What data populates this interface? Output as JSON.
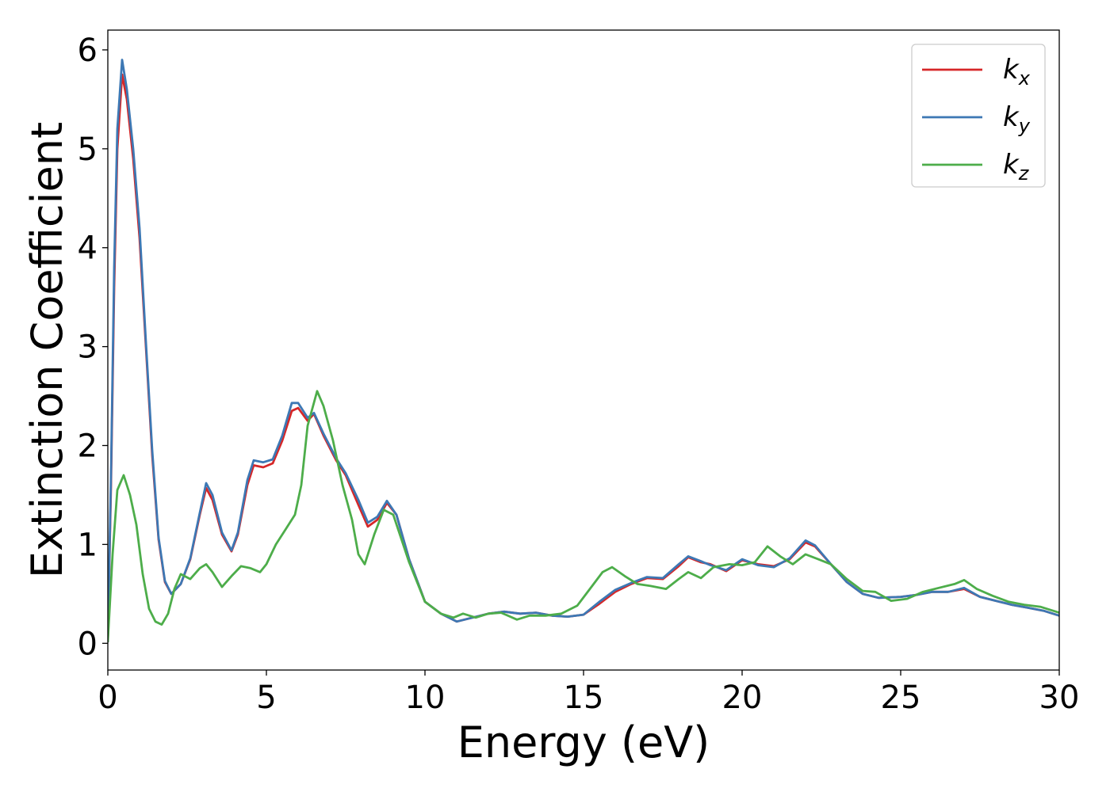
{
  "chart_data": {
    "type": "line",
    "title": "",
    "xlabel": "Energy (eV)",
    "ylabel": "Extinction Coefficient",
    "xlim": [
      0,
      30
    ],
    "ylim": [
      -0.27,
      6.2
    ],
    "xticks": [
      0,
      5,
      10,
      15,
      20,
      25,
      30
    ],
    "yticks": [
      0,
      1,
      2,
      3,
      4,
      5,
      6
    ],
    "grid": false,
    "legend_position": "top-right",
    "series": [
      {
        "name": "k_x",
        "label_main": "k",
        "label_sub": "x",
        "color": "#d62728",
        "points": [
          [
            0,
            0.02
          ],
          [
            0.1,
            1.6
          ],
          [
            0.2,
            3.6
          ],
          [
            0.3,
            5.0
          ],
          [
            0.45,
            5.75
          ],
          [
            0.6,
            5.5
          ],
          [
            0.8,
            4.9
          ],
          [
            1.0,
            4.1
          ],
          [
            1.2,
            3.0
          ],
          [
            1.4,
            1.9
          ],
          [
            1.6,
            1.05
          ],
          [
            1.8,
            0.62
          ],
          [
            2.0,
            0.5
          ],
          [
            2.3,
            0.6
          ],
          [
            2.6,
            0.85
          ],
          [
            2.9,
            1.3
          ],
          [
            3.1,
            1.57
          ],
          [
            3.3,
            1.45
          ],
          [
            3.6,
            1.1
          ],
          [
            3.9,
            0.93
          ],
          [
            4.1,
            1.1
          ],
          [
            4.4,
            1.6
          ],
          [
            4.6,
            1.8
          ],
          [
            4.9,
            1.78
          ],
          [
            5.2,
            1.82
          ],
          [
            5.5,
            2.05
          ],
          [
            5.8,
            2.35
          ],
          [
            6.0,
            2.38
          ],
          [
            6.3,
            2.25
          ],
          [
            6.5,
            2.32
          ],
          [
            6.8,
            2.1
          ],
          [
            7.2,
            1.85
          ],
          [
            7.5,
            1.7
          ],
          [
            7.9,
            1.4
          ],
          [
            8.2,
            1.18
          ],
          [
            8.5,
            1.25
          ],
          [
            8.8,
            1.42
          ],
          [
            9.1,
            1.3
          ],
          [
            9.5,
            0.85
          ],
          [
            10.0,
            0.42
          ],
          [
            10.5,
            0.3
          ],
          [
            11.0,
            0.22
          ],
          [
            11.5,
            0.26
          ],
          [
            12.0,
            0.3
          ],
          [
            12.5,
            0.32
          ],
          [
            13.0,
            0.3
          ],
          [
            13.5,
            0.31
          ],
          [
            14.0,
            0.28
          ],
          [
            14.5,
            0.27
          ],
          [
            15.0,
            0.29
          ],
          [
            15.5,
            0.4
          ],
          [
            16.0,
            0.52
          ],
          [
            16.5,
            0.6
          ],
          [
            17.0,
            0.66
          ],
          [
            17.5,
            0.65
          ],
          [
            18.0,
            0.78
          ],
          [
            18.3,
            0.87
          ],
          [
            18.7,
            0.82
          ],
          [
            19.0,
            0.8
          ],
          [
            19.5,
            0.73
          ],
          [
            20.0,
            0.84
          ],
          [
            20.5,
            0.8
          ],
          [
            21.0,
            0.78
          ],
          [
            21.5,
            0.85
          ],
          [
            22.0,
            1.02
          ],
          [
            22.3,
            0.98
          ],
          [
            22.8,
            0.8
          ],
          [
            23.3,
            0.62
          ],
          [
            23.8,
            0.5
          ],
          [
            24.3,
            0.46
          ],
          [
            25.0,
            0.47
          ],
          [
            25.5,
            0.49
          ],
          [
            26.0,
            0.52
          ],
          [
            26.5,
            0.52
          ],
          [
            27.0,
            0.55
          ],
          [
            27.5,
            0.47
          ],
          [
            28.0,
            0.43
          ],
          [
            28.5,
            0.39
          ],
          [
            29.0,
            0.36
          ],
          [
            29.5,
            0.33
          ],
          [
            30.0,
            0.28
          ]
        ]
      },
      {
        "name": "k_y",
        "label_main": "k",
        "label_sub": "y",
        "color": "#3d78b4",
        "points": [
          [
            0,
            0.02
          ],
          [
            0.1,
            1.7
          ],
          [
            0.2,
            3.8
          ],
          [
            0.3,
            5.2
          ],
          [
            0.45,
            5.9
          ],
          [
            0.6,
            5.6
          ],
          [
            0.8,
            5.0
          ],
          [
            1.0,
            4.2
          ],
          [
            1.2,
            3.05
          ],
          [
            1.4,
            1.95
          ],
          [
            1.6,
            1.07
          ],
          [
            1.8,
            0.63
          ],
          [
            2.0,
            0.5
          ],
          [
            2.3,
            0.6
          ],
          [
            2.6,
            0.86
          ],
          [
            2.9,
            1.32
          ],
          [
            3.1,
            1.62
          ],
          [
            3.3,
            1.5
          ],
          [
            3.6,
            1.12
          ],
          [
            3.9,
            0.94
          ],
          [
            4.1,
            1.12
          ],
          [
            4.4,
            1.65
          ],
          [
            4.6,
            1.85
          ],
          [
            4.9,
            1.83
          ],
          [
            5.2,
            1.86
          ],
          [
            5.5,
            2.1
          ],
          [
            5.8,
            2.43
          ],
          [
            6.0,
            2.43
          ],
          [
            6.3,
            2.28
          ],
          [
            6.5,
            2.33
          ],
          [
            6.8,
            2.12
          ],
          [
            7.2,
            1.87
          ],
          [
            7.5,
            1.72
          ],
          [
            7.9,
            1.45
          ],
          [
            8.2,
            1.22
          ],
          [
            8.5,
            1.28
          ],
          [
            8.8,
            1.44
          ],
          [
            9.1,
            1.3
          ],
          [
            9.5,
            0.85
          ],
          [
            10.0,
            0.42
          ],
          [
            10.5,
            0.3
          ],
          [
            11.0,
            0.22
          ],
          [
            11.5,
            0.26
          ],
          [
            12.0,
            0.3
          ],
          [
            12.5,
            0.32
          ],
          [
            13.0,
            0.3
          ],
          [
            13.5,
            0.31
          ],
          [
            14.0,
            0.28
          ],
          [
            14.5,
            0.27
          ],
          [
            15.0,
            0.29
          ],
          [
            15.5,
            0.42
          ],
          [
            16.0,
            0.54
          ],
          [
            16.5,
            0.61
          ],
          [
            17.0,
            0.67
          ],
          [
            17.5,
            0.66
          ],
          [
            18.0,
            0.8
          ],
          [
            18.3,
            0.88
          ],
          [
            18.7,
            0.83
          ],
          [
            19.0,
            0.79
          ],
          [
            19.5,
            0.74
          ],
          [
            20.0,
            0.85
          ],
          [
            20.5,
            0.79
          ],
          [
            21.0,
            0.77
          ],
          [
            21.5,
            0.86
          ],
          [
            22.0,
            1.04
          ],
          [
            22.3,
            0.99
          ],
          [
            22.8,
            0.8
          ],
          [
            23.3,
            0.62
          ],
          [
            23.8,
            0.5
          ],
          [
            24.3,
            0.46
          ],
          [
            25.0,
            0.47
          ],
          [
            25.5,
            0.49
          ],
          [
            26.0,
            0.52
          ],
          [
            26.5,
            0.52
          ],
          [
            27.0,
            0.56
          ],
          [
            27.5,
            0.47
          ],
          [
            28.0,
            0.43
          ],
          [
            28.5,
            0.39
          ],
          [
            29.0,
            0.36
          ],
          [
            29.5,
            0.33
          ],
          [
            30.0,
            0.28
          ]
        ]
      },
      {
        "name": "k_z",
        "label_main": "k",
        "label_sub": "z",
        "color": "#4dad4a",
        "points": [
          [
            0,
            0.02
          ],
          [
            0.15,
            0.9
          ],
          [
            0.3,
            1.55
          ],
          [
            0.5,
            1.7
          ],
          [
            0.7,
            1.5
          ],
          [
            0.9,
            1.2
          ],
          [
            1.1,
            0.7
          ],
          [
            1.3,
            0.35
          ],
          [
            1.5,
            0.22
          ],
          [
            1.7,
            0.19
          ],
          [
            1.9,
            0.3
          ],
          [
            2.1,
            0.55
          ],
          [
            2.3,
            0.7
          ],
          [
            2.6,
            0.65
          ],
          [
            2.9,
            0.76
          ],
          [
            3.1,
            0.8
          ],
          [
            3.3,
            0.72
          ],
          [
            3.6,
            0.57
          ],
          [
            3.9,
            0.68
          ],
          [
            4.2,
            0.78
          ],
          [
            4.5,
            0.76
          ],
          [
            4.8,
            0.72
          ],
          [
            5.0,
            0.8
          ],
          [
            5.3,
            1.0
          ],
          [
            5.6,
            1.15
          ],
          [
            5.9,
            1.3
          ],
          [
            6.1,
            1.6
          ],
          [
            6.3,
            2.2
          ],
          [
            6.6,
            2.55
          ],
          [
            6.8,
            2.4
          ],
          [
            7.1,
            2.05
          ],
          [
            7.4,
            1.6
          ],
          [
            7.7,
            1.25
          ],
          [
            7.9,
            0.9
          ],
          [
            8.1,
            0.8
          ],
          [
            8.4,
            1.1
          ],
          [
            8.7,
            1.35
          ],
          [
            9.0,
            1.3
          ],
          [
            9.5,
            0.82
          ],
          [
            10.0,
            0.42
          ],
          [
            10.5,
            0.3
          ],
          [
            10.9,
            0.26
          ],
          [
            11.2,
            0.3
          ],
          [
            11.6,
            0.26
          ],
          [
            12.0,
            0.3
          ],
          [
            12.4,
            0.31
          ],
          [
            12.9,
            0.24
          ],
          [
            13.3,
            0.28
          ],
          [
            13.8,
            0.28
          ],
          [
            14.3,
            0.3
          ],
          [
            14.8,
            0.38
          ],
          [
            15.2,
            0.55
          ],
          [
            15.6,
            0.72
          ],
          [
            15.9,
            0.77
          ],
          [
            16.3,
            0.68
          ],
          [
            16.7,
            0.6
          ],
          [
            17.1,
            0.58
          ],
          [
            17.6,
            0.55
          ],
          [
            18.0,
            0.65
          ],
          [
            18.3,
            0.72
          ],
          [
            18.7,
            0.66
          ],
          [
            19.1,
            0.77
          ],
          [
            19.6,
            0.8
          ],
          [
            20.0,
            0.79
          ],
          [
            20.4,
            0.82
          ],
          [
            20.8,
            0.98
          ],
          [
            21.2,
            0.88
          ],
          [
            21.6,
            0.8
          ],
          [
            22.0,
            0.9
          ],
          [
            22.4,
            0.85
          ],
          [
            22.8,
            0.8
          ],
          [
            23.3,
            0.65
          ],
          [
            23.8,
            0.53
          ],
          [
            24.2,
            0.52
          ],
          [
            24.7,
            0.43
          ],
          [
            25.2,
            0.45
          ],
          [
            25.7,
            0.52
          ],
          [
            26.2,
            0.56
          ],
          [
            26.7,
            0.6
          ],
          [
            27.0,
            0.64
          ],
          [
            27.4,
            0.55
          ],
          [
            27.9,
            0.48
          ],
          [
            28.4,
            0.42
          ],
          [
            28.9,
            0.39
          ],
          [
            29.4,
            0.37
          ],
          [
            30.0,
            0.31
          ]
        ]
      }
    ]
  }
}
